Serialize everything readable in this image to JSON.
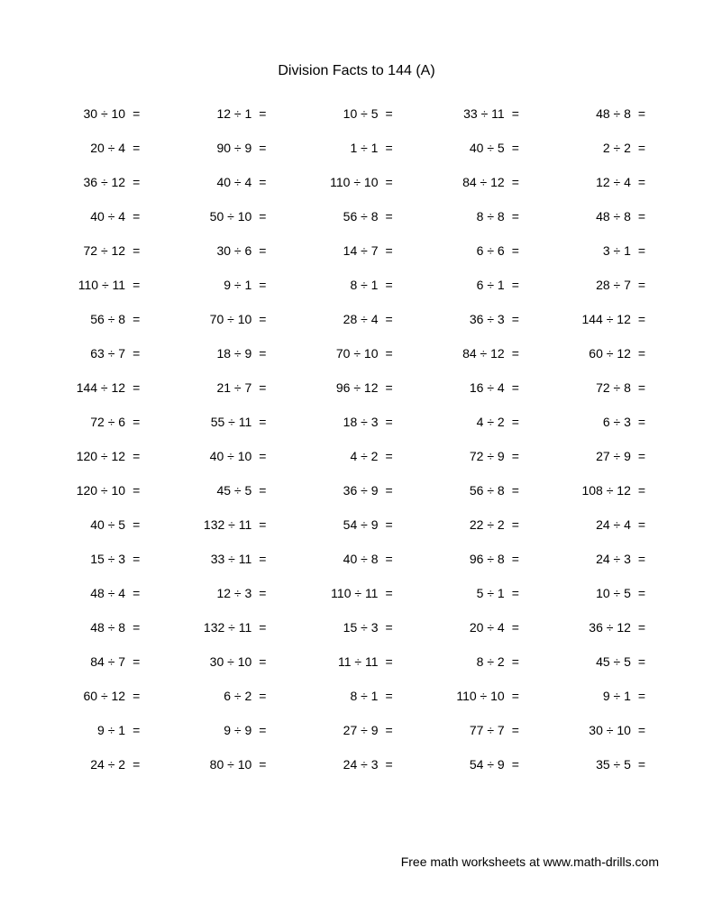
{
  "title": "Division Facts to 144 (A)",
  "footer": "Free math worksheets at www.math-drills.com",
  "divide_symbol": "÷",
  "equals_symbol": "=",
  "text_color": "#000000",
  "background_color": "#ffffff",
  "font_family": "Arial, Helvetica, sans-serif",
  "title_fontsize": 16,
  "problem_fontsize": 14,
  "rows": 20,
  "cols": 5,
  "problems": [
    [
      [
        30,
        10
      ],
      [
        12,
        1
      ],
      [
        10,
        5
      ],
      [
        33,
        11
      ],
      [
        48,
        8
      ]
    ],
    [
      [
        20,
        4
      ],
      [
        90,
        9
      ],
      [
        1,
        1
      ],
      [
        40,
        5
      ],
      [
        2,
        2
      ]
    ],
    [
      [
        36,
        12
      ],
      [
        40,
        4
      ],
      [
        110,
        10
      ],
      [
        84,
        12
      ],
      [
        12,
        4
      ]
    ],
    [
      [
        40,
        4
      ],
      [
        50,
        10
      ],
      [
        56,
        8
      ],
      [
        8,
        8
      ],
      [
        48,
        8
      ]
    ],
    [
      [
        72,
        12
      ],
      [
        30,
        6
      ],
      [
        14,
        7
      ],
      [
        6,
        6
      ],
      [
        3,
        1
      ]
    ],
    [
      [
        110,
        11
      ],
      [
        9,
        1
      ],
      [
        8,
        1
      ],
      [
        6,
        1
      ],
      [
        28,
        7
      ]
    ],
    [
      [
        56,
        8
      ],
      [
        70,
        10
      ],
      [
        28,
        4
      ],
      [
        36,
        3
      ],
      [
        144,
        12
      ]
    ],
    [
      [
        63,
        7
      ],
      [
        18,
        9
      ],
      [
        70,
        10
      ],
      [
        84,
        12
      ],
      [
        60,
        12
      ]
    ],
    [
      [
        144,
        12
      ],
      [
        21,
        7
      ],
      [
        96,
        12
      ],
      [
        16,
        4
      ],
      [
        72,
        8
      ]
    ],
    [
      [
        72,
        6
      ],
      [
        55,
        11
      ],
      [
        18,
        3
      ],
      [
        4,
        2
      ],
      [
        6,
        3
      ]
    ],
    [
      [
        120,
        12
      ],
      [
        40,
        10
      ],
      [
        4,
        2
      ],
      [
        72,
        9
      ],
      [
        27,
        9
      ]
    ],
    [
      [
        120,
        10
      ],
      [
        45,
        5
      ],
      [
        36,
        9
      ],
      [
        56,
        8
      ],
      [
        108,
        12
      ]
    ],
    [
      [
        40,
        5
      ],
      [
        132,
        11
      ],
      [
        54,
        9
      ],
      [
        22,
        2
      ],
      [
        24,
        4
      ]
    ],
    [
      [
        15,
        3
      ],
      [
        33,
        11
      ],
      [
        40,
        8
      ],
      [
        96,
        8
      ],
      [
        24,
        3
      ]
    ],
    [
      [
        48,
        4
      ],
      [
        12,
        3
      ],
      [
        110,
        11
      ],
      [
        5,
        1
      ],
      [
        10,
        5
      ]
    ],
    [
      [
        48,
        8
      ],
      [
        132,
        11
      ],
      [
        15,
        3
      ],
      [
        20,
        4
      ],
      [
        36,
        12
      ]
    ],
    [
      [
        84,
        7
      ],
      [
        30,
        10
      ],
      [
        11,
        11
      ],
      [
        8,
        2
      ],
      [
        45,
        5
      ]
    ],
    [
      [
        60,
        12
      ],
      [
        6,
        2
      ],
      [
        8,
        1
      ],
      [
        110,
        10
      ],
      [
        9,
        1
      ]
    ],
    [
      [
        9,
        1
      ],
      [
        9,
        9
      ],
      [
        27,
        9
      ],
      [
        77,
        7
      ],
      [
        30,
        10
      ]
    ],
    [
      [
        24,
        2
      ],
      [
        80,
        10
      ],
      [
        24,
        3
      ],
      [
        54,
        9
      ],
      [
        35,
        5
      ]
    ]
  ]
}
